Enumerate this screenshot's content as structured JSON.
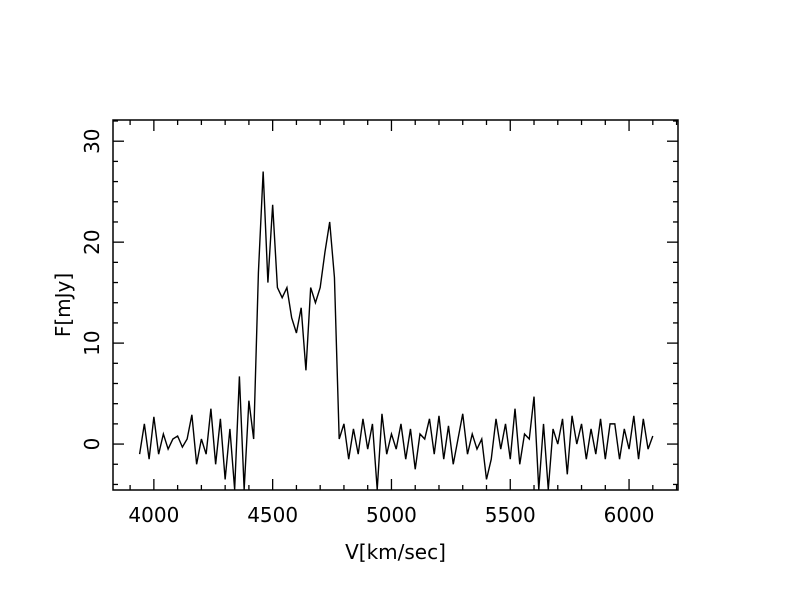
{
  "chart_data": {
    "type": "line",
    "xlabel": "V[km/sec]",
    "ylabel": "F[mJy]",
    "color": "#000000",
    "x": [
      3940,
      3960,
      3980,
      4000,
      4020,
      4040,
      4060,
      4080,
      4100,
      4120,
      4140,
      4160,
      4180,
      4200,
      4220,
      4240,
      4260,
      4280,
      4300,
      4320,
      4340,
      4360,
      4380,
      4400,
      4420,
      4440,
      4460,
      4480,
      4500,
      4520,
      4540,
      4560,
      4580,
      4600,
      4620,
      4640,
      4660,
      4680,
      4700,
      4720,
      4740,
      4760,
      4780,
      4800,
      4820,
      4840,
      4860,
      4880,
      4900,
      4920,
      4940,
      4960,
      4980,
      5000,
      5020,
      5040,
      5060,
      5080,
      5100,
      5120,
      5140,
      5160,
      5180,
      5200,
      5220,
      5240,
      5260,
      5280,
      5300,
      5320,
      5340,
      5360,
      5380,
      5400,
      5420,
      5440,
      5460,
      5480,
      5500,
      5520,
      5540,
      5560,
      5580,
      5600,
      5620,
      5640,
      5660,
      5680,
      5700,
      5720,
      5740,
      5760,
      5780,
      5800,
      5820,
      5840,
      5860,
      5880,
      5900,
      5920,
      5940,
      5960,
      5980,
      6000,
      6020,
      6040,
      6060,
      6080,
      6100
    ],
    "values": [
      -1,
      2,
      -1.5,
      2.7,
      -1,
      1,
      -0.5,
      0.5,
      0.8,
      -0.3,
      0.5,
      2.9,
      -2,
      0.5,
      -1,
      3.5,
      -2,
      2.5,
      -3.5,
      1.5,
      -4.5,
      6.7,
      -4.5,
      4.3,
      0.5,
      17,
      27,
      16,
      23.7,
      15.5,
      14.5,
      15.5,
      12.5,
      11,
      13.5,
      7.3,
      15.5,
      14,
      15.5,
      19,
      22,
      16.5,
      0.5,
      2,
      -1.5,
      1.5,
      -1,
      2.5,
      -0.5,
      2,
      -4.5,
      3,
      -1,
      1,
      -0.5,
      2,
      -1.5,
      1.5,
      -2.5,
      1,
      0.5,
      2.5,
      -1,
      2.8,
      -1.5,
      1.8,
      -2,
      0.5,
      3,
      -1,
      1,
      -0.5,
      0.5,
      -3.5,
      -1.5,
      2.5,
      -0.5,
      2,
      -1.5,
      3.5,
      -2,
      1,
      0.5,
      4.7,
      -4.5,
      2,
      -4.5,
      1.5,
      0,
      2.5,
      -3,
      2.8,
      0,
      2,
      -1.5,
      1.5,
      -1,
      2.5,
      -1.5,
      2,
      2,
      -1.5,
      1.5,
      -0.5,
      2.8,
      -1.5,
      2.5,
      -0.5,
      0.8
    ],
    "xlim": [
      3828,
      6206
    ],
    "ylim": [
      -4.55,
      32.1
    ],
    "xticks": [
      4000,
      4500,
      5000,
      5500,
      6000
    ],
    "yticks": [
      0,
      10,
      20,
      30
    ],
    "xminorticks": [
      3900,
      4100,
      4200,
      4300,
      4400,
      4600,
      4700,
      4800,
      4900,
      5100,
      5200,
      5300,
      5400,
      5600,
      5700,
      5800,
      5900,
      6100,
      6200
    ],
    "yminorticks": [
      -4,
      -2,
      2,
      4,
      6,
      8,
      12,
      14,
      16,
      18,
      22,
      24,
      26,
      28,
      32
    ]
  }
}
